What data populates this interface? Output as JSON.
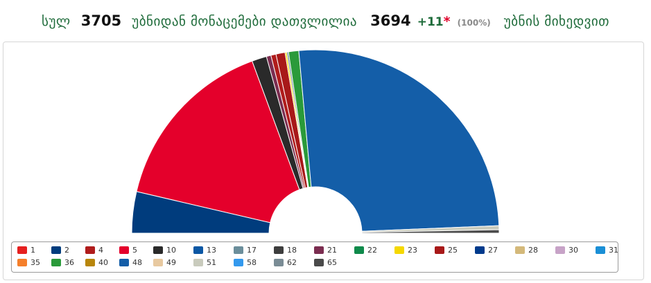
{
  "header": {
    "total_label": "სულ",
    "total": "3705",
    "counted_label": "უბნიდან მონაცემები დათვლილია",
    "counted": "3694",
    "plus": "+11",
    "star": "*",
    "percent": "(100%)",
    "suffix": "უბნის მიხედვით"
  },
  "chart_data": {
    "type": "pie",
    "variant": "semicircle-donut",
    "grid": false,
    "legend_position": "bottom",
    "slices": [
      {
        "label": "2",
        "value": 7.3,
        "color": "#003c7d"
      },
      {
        "label": "5",
        "value": 31.5,
        "color": "#e4002b"
      },
      {
        "label": "10",
        "value": 2.6,
        "color": "#2a2a2a"
      },
      {
        "label": "21",
        "value": 0.8,
        "color": "#7b2d50"
      },
      {
        "label": "4",
        "value": 0.9,
        "color": "#b01c1c"
      },
      {
        "label": "25",
        "value": 1.6,
        "color": "#a81919"
      },
      {
        "label": "23",
        "value": 0.3,
        "color": "#f5d800"
      },
      {
        "label": "17",
        "value": 0.3,
        "color": "#6b8e9b"
      },
      {
        "label": "36",
        "value": 1.8,
        "color": "#2a9a3a"
      },
      {
        "label": "48",
        "value": 51.6,
        "color": "#145ea8"
      },
      {
        "label": "51",
        "value": 0.7,
        "color": "#c9cbbd"
      },
      {
        "label": "65",
        "value": 0.6,
        "color": "#4a4a4a"
      }
    ]
  },
  "legend": [
    {
      "label": "1",
      "color": "#e62020"
    },
    {
      "label": "2",
      "color": "#003c7d"
    },
    {
      "label": "4",
      "color": "#b01c1c"
    },
    {
      "label": "5",
      "color": "#e4002b"
    },
    {
      "label": "10",
      "color": "#2a2a2a"
    },
    {
      "label": "13",
      "color": "#0b57a4"
    },
    {
      "label": "17",
      "color": "#6b8e9b"
    },
    {
      "label": "18",
      "color": "#3d3d3d"
    },
    {
      "label": "21",
      "color": "#7b2d50"
    },
    {
      "label": "22",
      "color": "#0f8a4b"
    },
    {
      "label": "23",
      "color": "#f5d800"
    },
    {
      "label": "25",
      "color": "#a81919"
    },
    {
      "label": "27",
      "color": "#003a8c"
    },
    {
      "label": "28",
      "color": "#d4b97a"
    },
    {
      "label": "30",
      "color": "#c7a3c7"
    },
    {
      "label": "31",
      "color": "#1a8fd6"
    },
    {
      "label": "35",
      "color": "#f57f2b"
    },
    {
      "label": "36",
      "color": "#2a9a3a"
    },
    {
      "label": "40",
      "color": "#b8860b"
    },
    {
      "label": "48",
      "color": "#145ea8"
    },
    {
      "label": "49",
      "color": "#e8c9a0"
    },
    {
      "label": "51",
      "color": "#c9cbbd"
    },
    {
      "label": "58",
      "color": "#3399ee"
    },
    {
      "label": "62",
      "color": "#7a8c95"
    },
    {
      "label": "65",
      "color": "#4a4a4a"
    }
  ]
}
